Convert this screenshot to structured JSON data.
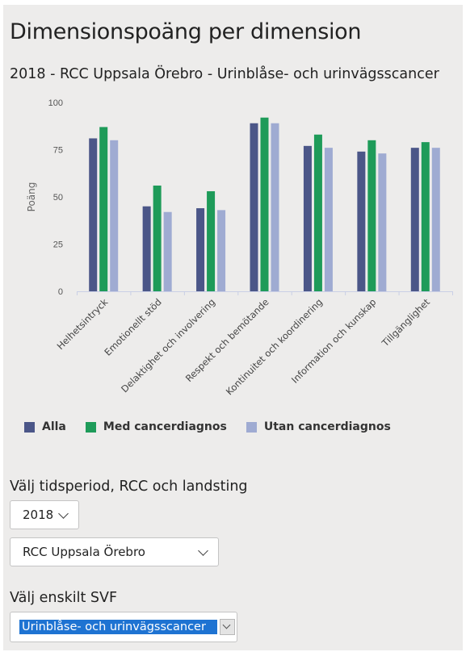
{
  "title": "Dimensionspoäng per dimension",
  "chart_title": "2018 - RCC Uppsala Örebro - Urinblåse- och urinvägsscancer",
  "chart_data": {
    "type": "bar",
    "title": "2018 - RCC Uppsala Örebro - Urinblåse- och urinvägsscancer",
    "xlabel": "",
    "ylabel": "Poäng",
    "ylim": [
      0,
      100
    ],
    "yticks": [
      "0",
      "25",
      "50",
      "75",
      "100"
    ],
    "grid": false,
    "legend": "bottom",
    "categories": [
      "Helhetsintryck",
      "Emotionellt stöd",
      "Delaktighet och involvering",
      "Respekt och bemötande",
      "Kontinuitet och koordinering",
      "Information och kunskap",
      "Tillgänglighet"
    ],
    "series": [
      {
        "name": "Alla",
        "color": "#4b5688",
        "values": [
          81,
          45,
          44,
          89,
          77,
          74,
          76
        ]
      },
      {
        "name": "Med cancerdiagnos",
        "color": "#1e9b59",
        "values": [
          87,
          56,
          53,
          92,
          83,
          80,
          79
        ]
      },
      {
        "name": "Utan cancerdiagnos",
        "color": "#9fabd2",
        "values": [
          80,
          42,
          43,
          89,
          76,
          73,
          76
        ]
      }
    ]
  },
  "filters": {
    "period_label": "Välj tidsperiod, RCC och landsting",
    "year": "2018",
    "rcc": "RCC Uppsala Örebro",
    "svf_label": "Välj enskilt SVF",
    "svf": "Urinblåse- och urinvägsscancer"
  }
}
